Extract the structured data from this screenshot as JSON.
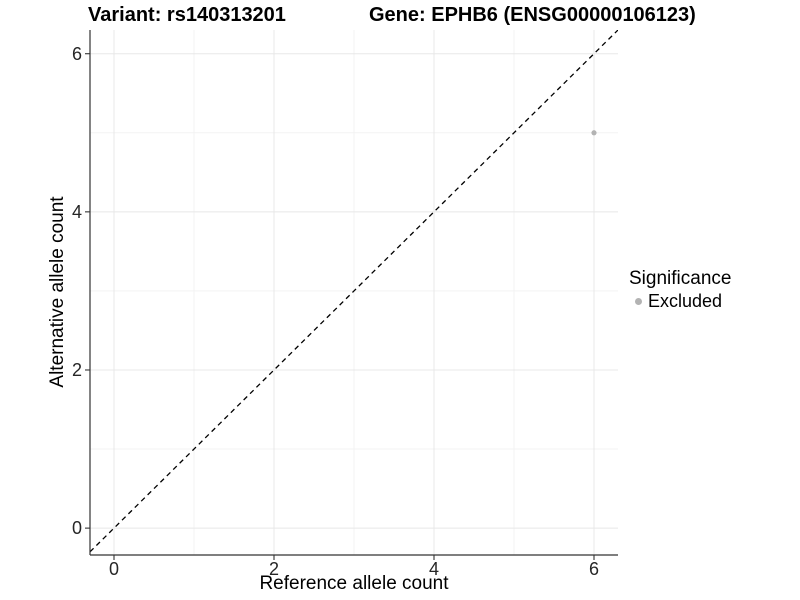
{
  "titles": {
    "variant": "Variant: rs140313201",
    "gene": "Gene: EPHB6 (ENSG00000106123)"
  },
  "legend": {
    "title": "Significance",
    "items": [
      {
        "label": "Excluded",
        "color": "#b3b3b3"
      }
    ]
  },
  "colors": {
    "background": "#ffffff",
    "grid_major": "#e8e8e8",
    "grid_minor": "#f3f3f3",
    "axis_line": "#333333",
    "tick_mark": "#333333",
    "identity_line": "#000000",
    "point": "#b3b3b3"
  },
  "chart_data": {
    "type": "scatter",
    "title": "Variant: rs140313201   Gene: EPHB6 (ENSG00000106123)",
    "xlabel": "Reference allele count",
    "ylabel": "Alternative allele count",
    "xlim": [
      -0.3,
      6.3
    ],
    "ylim": [
      -0.34,
      6.3
    ],
    "x_ticks": [
      0,
      2,
      4,
      6
    ],
    "y_ticks": [
      0,
      2,
      4,
      6
    ],
    "grid": "on",
    "legend_position": "right",
    "series": [
      {
        "name": "Excluded",
        "color": "#b3b3b3",
        "points": [
          {
            "x": 6,
            "y": 5
          }
        ]
      }
    ],
    "reference_line": {
      "type": "identity y=x",
      "style": "dashed",
      "color": "#000000"
    }
  }
}
